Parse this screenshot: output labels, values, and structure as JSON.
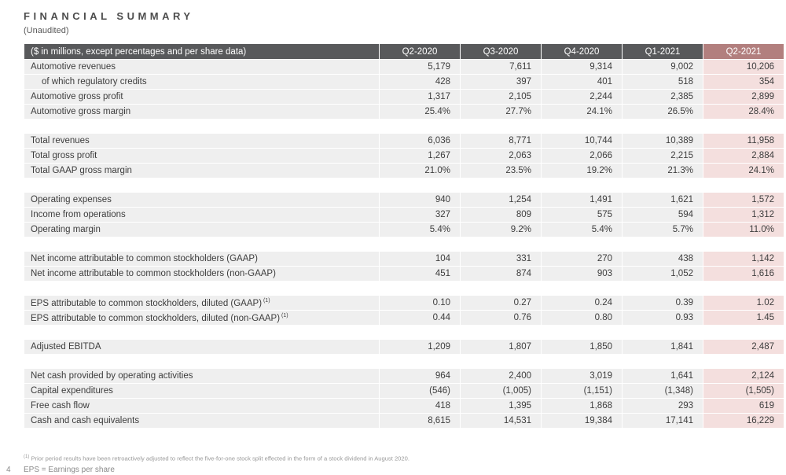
{
  "page": {
    "title": "FINANCIAL SUMMARY",
    "subtitle": "(Unaudited)",
    "page_number": "4",
    "footnote1_marker": "(1)",
    "footnote1": "Prior period results have been retroactively adjusted to reflect the five-for-one stock split effected in the form of a stock dividend in August 2020.",
    "footnote2": "EPS = Earnings per share"
  },
  "colors": {
    "header_bg": "#58595b",
    "header_highlight_bg": "#b27f7e",
    "row_bg": "#efefef",
    "highlight_cell_bg": "#f4dfde"
  },
  "table": {
    "header": {
      "label": "($ in millions, except percentages and per share data)",
      "columns": [
        "Q2-2020",
        "Q3-2020",
        "Q4-2020",
        "Q1-2021",
        "Q2-2021"
      ]
    },
    "groups": [
      {
        "rows": [
          {
            "label": "Automotive revenues",
            "values": [
              "5,179",
              "7,611",
              "9,314",
              "9,002",
              "10,206"
            ]
          },
          {
            "label": "of which regulatory credits",
            "indent": true,
            "values": [
              "428",
              "397",
              "401",
              "518",
              "354"
            ]
          },
          {
            "label": "Automotive gross profit",
            "values": [
              "1,317",
              "2,105",
              "2,244",
              "2,385",
              "2,899"
            ]
          },
          {
            "label": "Automotive gross margin",
            "values": [
              "25.4%",
              "27.7%",
              "24.1%",
              "26.5%",
              "28.4%"
            ]
          }
        ]
      },
      {
        "rows": [
          {
            "label": "Total revenues",
            "values": [
              "6,036",
              "8,771",
              "10,744",
              "10,389",
              "11,958"
            ]
          },
          {
            "label": "Total gross profit",
            "values": [
              "1,267",
              "2,063",
              "2,066",
              "2,215",
              "2,884"
            ]
          },
          {
            "label": "Total GAAP gross margin",
            "values": [
              "21.0%",
              "23.5%",
              "19.2%",
              "21.3%",
              "24.1%"
            ]
          }
        ]
      },
      {
        "rows": [
          {
            "label": "Operating expenses",
            "values": [
              "940",
              "1,254",
              "1,491",
              "1,621",
              "1,572"
            ]
          },
          {
            "label": "Income from operations",
            "values": [
              "327",
              "809",
              "575",
              "594",
              "1,312"
            ]
          },
          {
            "label": "Operating margin",
            "values": [
              "5.4%",
              "9.2%",
              "5.4%",
              "5.7%",
              "11.0%"
            ]
          }
        ]
      },
      {
        "rows": [
          {
            "label": "Net income attributable to common stockholders (GAAP)",
            "values": [
              "104",
              "331",
              "270",
              "438",
              "1,142"
            ]
          },
          {
            "label": "Net income attributable to common stockholders (non-GAAP)",
            "values": [
              "451",
              "874",
              "903",
              "1,052",
              "1,616"
            ]
          }
        ]
      },
      {
        "rows": [
          {
            "label": "EPS attributable to common stockholders, diluted (GAAP)",
            "note": "(1)",
            "values": [
              "0.10",
              "0.27",
              "0.24",
              "0.39",
              "1.02"
            ]
          },
          {
            "label": "EPS attributable to common stockholders, diluted (non-GAAP)",
            "note": "(1)",
            "values": [
              "0.44",
              "0.76",
              "0.80",
              "0.93",
              "1.45"
            ]
          }
        ]
      },
      {
        "rows": [
          {
            "label": "Adjusted EBITDA",
            "values": [
              "1,209",
              "1,807",
              "1,850",
              "1,841",
              "2,487"
            ]
          }
        ]
      },
      {
        "rows": [
          {
            "label": "Net cash provided by operating activities",
            "values": [
              "964",
              "2,400",
              "3,019",
              "1,641",
              "2,124"
            ]
          },
          {
            "label": "Capital expenditures",
            "values": [
              "(546)",
              "(1,005)",
              "(1,151)",
              "(1,348)",
              "(1,505)"
            ]
          },
          {
            "label": "Free cash flow",
            "values": [
              "418",
              "1,395",
              "1,868",
              "293",
              "619"
            ]
          },
          {
            "label": "Cash and cash equivalents",
            "values": [
              "8,615",
              "14,531",
              "19,384",
              "17,141",
              "16,229"
            ]
          }
        ]
      }
    ]
  }
}
